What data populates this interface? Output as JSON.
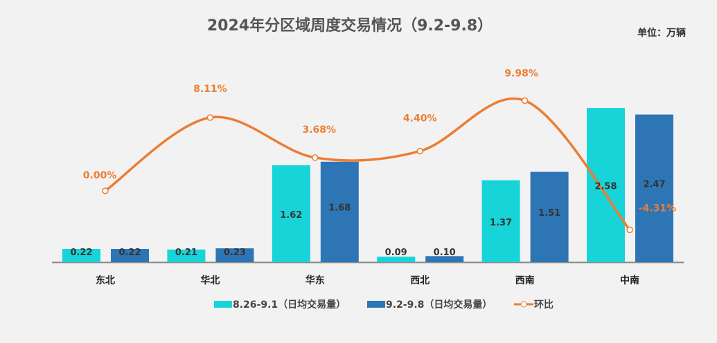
{
  "chart_data": {
    "type": "bar",
    "title": "2024年分区域周度交易情况（9.2-9.8）",
    "unit": "单位：万辆",
    "categories": [
      "东北",
      "华北",
      "华东",
      "西北",
      "西南",
      "中南"
    ],
    "series": [
      {
        "name": "8.26-9.1（日均交易量）",
        "type": "bar",
        "color": "#17d4d9",
        "values": [
          0.22,
          0.21,
          1.62,
          0.09,
          1.37,
          2.58
        ],
        "labels": [
          "0.22",
          "0.21",
          "1.62",
          "0.09",
          "1.37",
          "2.58"
        ]
      },
      {
        "name": "9.2-9.8（日均交易量）",
        "type": "bar",
        "color": "#2e75b6",
        "values": [
          0.22,
          0.23,
          1.68,
          0.1,
          1.51,
          2.47
        ],
        "labels": [
          "0.22",
          "0.23",
          "1.68",
          "0.10",
          "1.51",
          "2.47"
        ]
      },
      {
        "name": "环比",
        "type": "line",
        "axis": "secondary",
        "color": "#ed7d31",
        "values": [
          0.0,
          8.11,
          3.68,
          4.4,
          9.98,
          -4.31
        ],
        "labels": [
          "0.00%",
          "8.11%",
          "3.68%",
          "4.40%",
          "9.98%",
          "-4.31%"
        ]
      }
    ]
  }
}
